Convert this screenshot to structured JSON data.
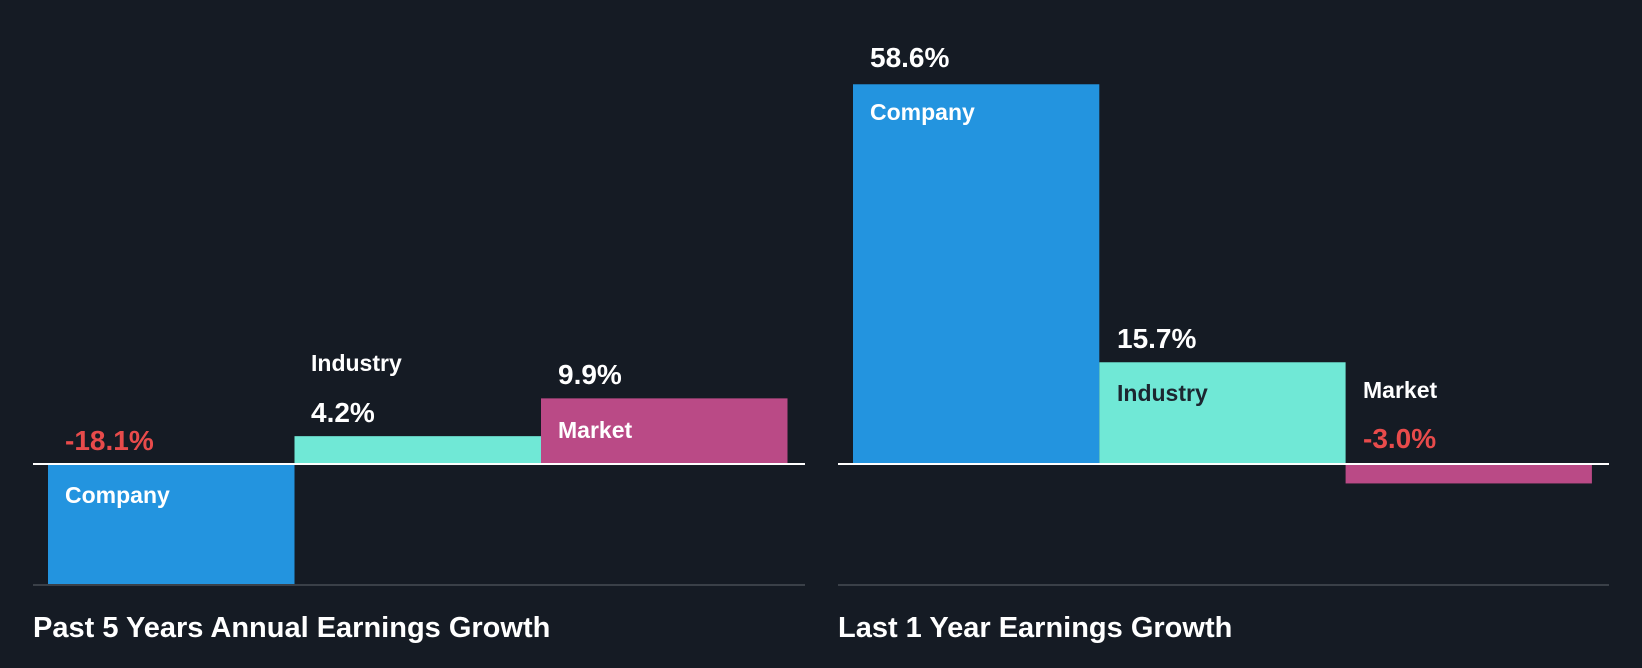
{
  "colors": {
    "background": "#151b24",
    "company": "#2394df",
    "industry": "#70e8d6",
    "market": "#ba4a86",
    "negative": "#e84b4b",
    "text": "#ffffff",
    "dark_text": "#1c2630"
  },
  "chart_data": [
    {
      "type": "bar",
      "title": "Past 5 Years Annual Earnings Growth",
      "categories": [
        "Company",
        "Industry",
        "Market"
      ],
      "values": [
        -18.1,
        4.2,
        9.9
      ],
      "value_labels": [
        "-18.1%",
        "4.2%",
        "9.9%"
      ],
      "unit": "%"
    },
    {
      "type": "bar",
      "title": "Last 1 Year Earnings Growth",
      "categories": [
        "Company",
        "Industry",
        "Market"
      ],
      "values": [
        58.6,
        15.7,
        -3.0
      ],
      "value_labels": [
        "58.6%",
        "15.7%",
        "-3.0%"
      ],
      "unit": "%"
    }
  ]
}
